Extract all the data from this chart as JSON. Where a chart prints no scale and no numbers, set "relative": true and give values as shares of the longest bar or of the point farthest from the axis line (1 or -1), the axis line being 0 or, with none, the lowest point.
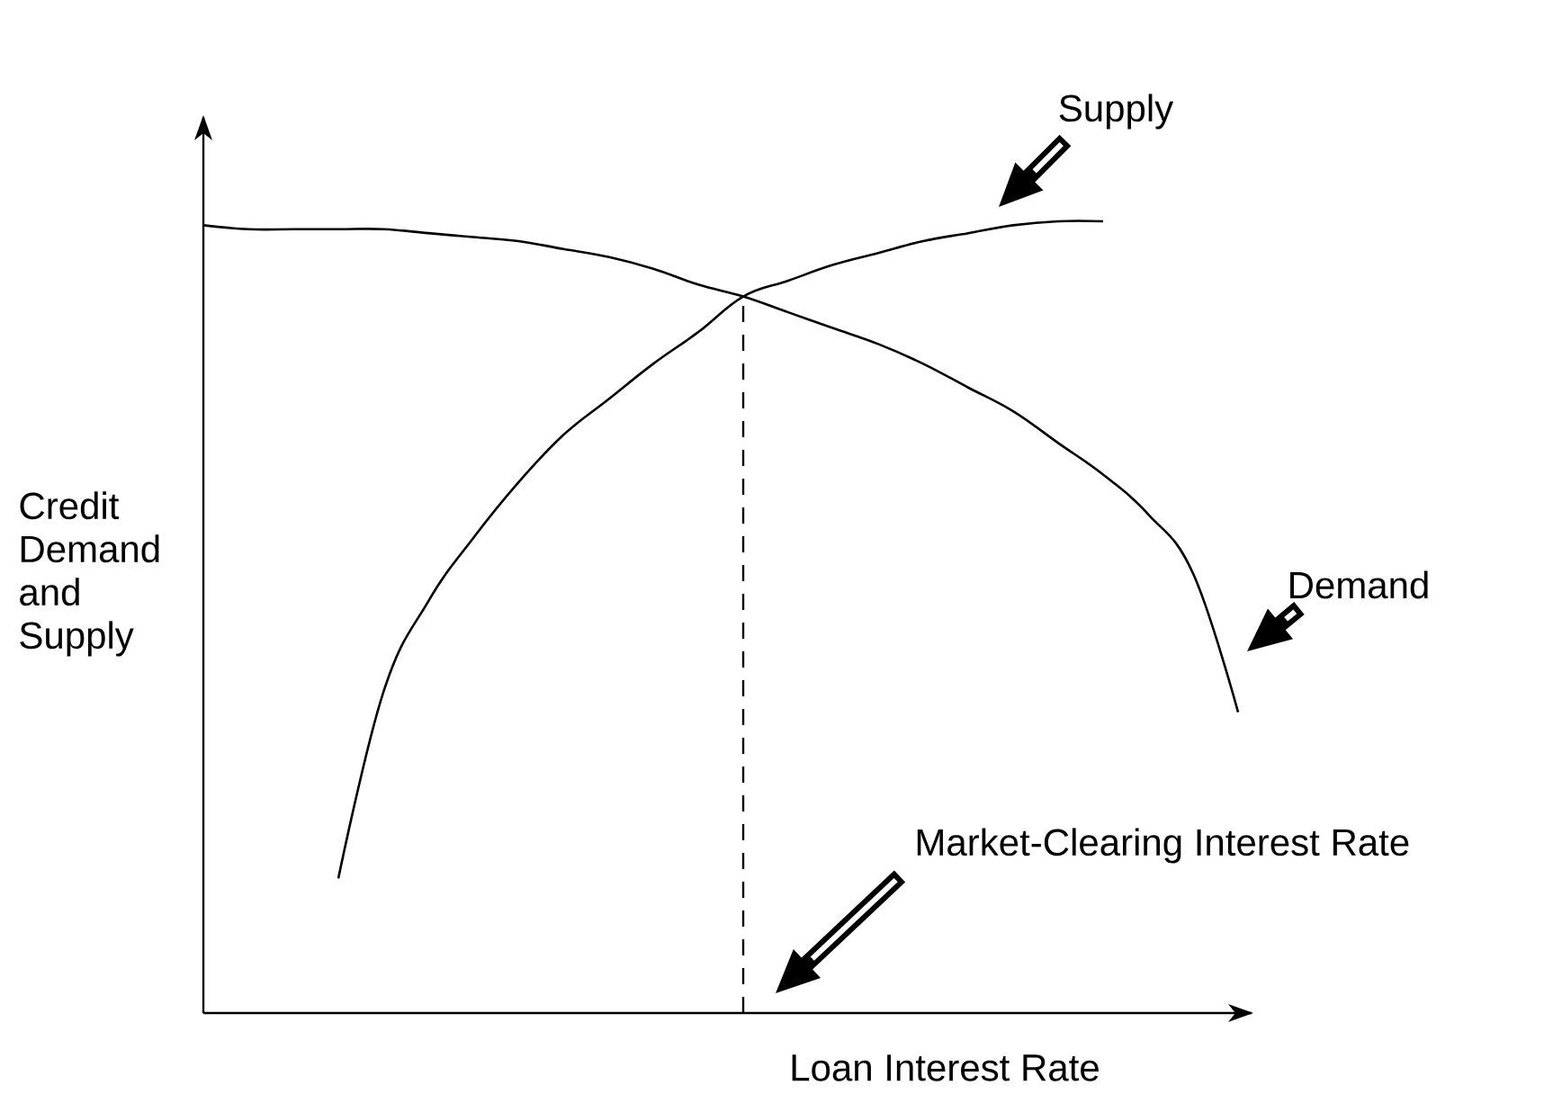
{
  "chart_data": {
    "type": "line",
    "relative": true,
    "xlabel": "Loan Interest Rate",
    "ylabel": "Credit Demand and Supply",
    "categories": [
      null,
      null,
      null,
      null,
      null,
      null,
      null,
      null,
      null,
      null,
      null,
      null,
      null,
      null,
      null,
      null,
      null,
      null,
      null,
      null,
      null,
      null,
      null,
      null
    ],
    "series": [
      {
        "name": "Demand",
        "color": "#000000",
        "values": [
          0.995,
          0.99,
          0.99,
          0.99,
          0.99,
          0.985,
          0.98,
          0.975,
          0.965,
          0.955,
          0.94,
          0.92,
          0.905,
          0.885,
          0.865,
          0.845,
          0.82,
          0.79,
          0.76,
          0.72,
          0.68,
          0.63,
          0.555,
          0.38
        ]
      },
      {
        "name": "Supply",
        "color": "#000000",
        "values": [
          null,
          null,
          null,
          0.17,
          0.405,
          0.52,
          0.6,
          0.67,
          0.73,
          0.775,
          0.82,
          0.86,
          0.905,
          0.925,
          0.945,
          0.96,
          0.975,
          0.985,
          0.995,
          1.0,
          1.0,
          null,
          null,
          null
        ]
      }
    ],
    "annotations": [
      "Market-Clearing Interest Rate"
    ],
    "legend": false,
    "marker": "none",
    "line_style": "solid"
  }
}
